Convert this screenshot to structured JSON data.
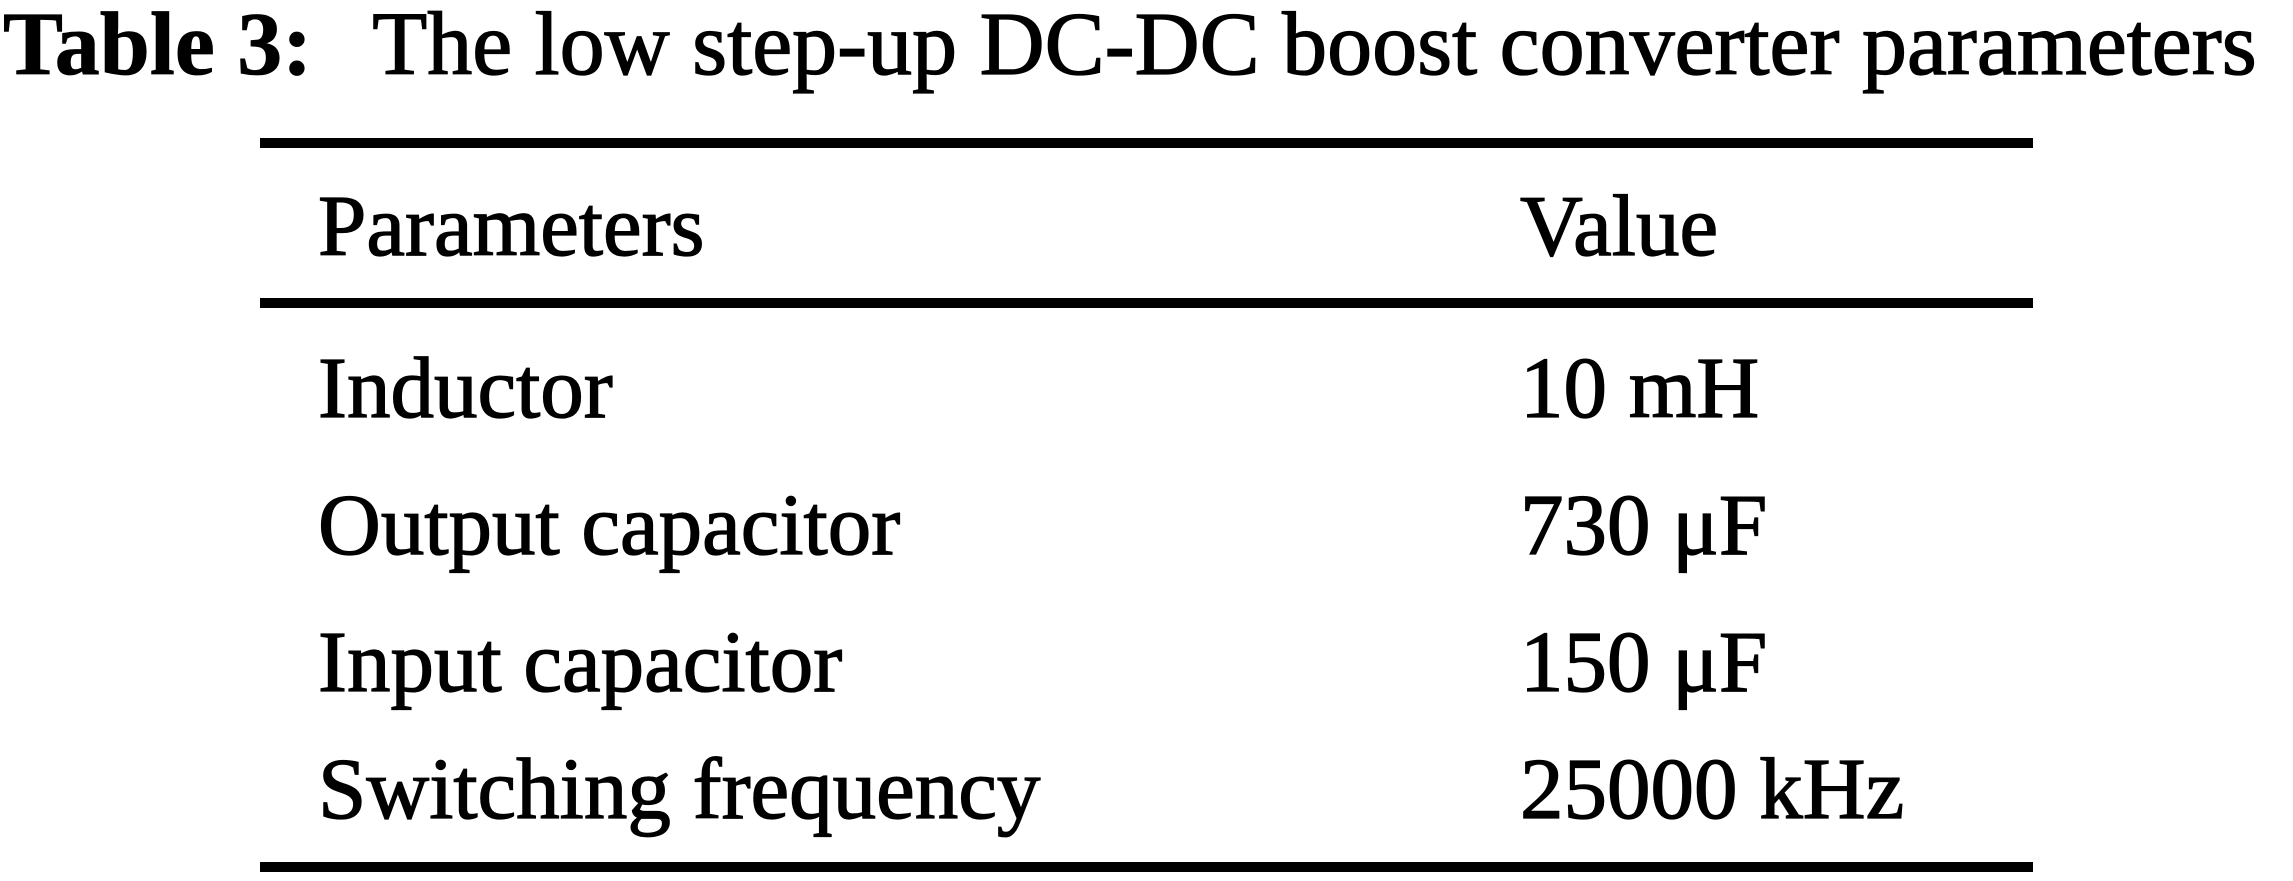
{
  "page": {
    "background_color": "#ffffff",
    "text_color": "#000000"
  },
  "caption": {
    "label": "Table 3:",
    "text": "The low step-up DC-DC boost converter parameters"
  },
  "table": {
    "columns": [
      "Parameters",
      "Value"
    ],
    "rows": [
      {
        "parameter": "Inductor",
        "value": "10 mH"
      },
      {
        "parameter": "Output capacitor",
        "value": "730 μF"
      },
      {
        "parameter": "Input capacitor",
        "value": "150 μF"
      },
      {
        "parameter": "Switching frequency",
        "value": "25000 kHz"
      }
    ]
  },
  "chart_data": {
    "type": "table",
    "title": "Table 3: The low step-up DC-DC boost converter parameters",
    "columns": [
      "Parameters",
      "Value"
    ],
    "rows": [
      [
        "Inductor",
        "10 mH"
      ],
      [
        "Output capacitor",
        "730 μF"
      ],
      [
        "Input capacitor",
        "150 μF"
      ],
      [
        "Switching frequency",
        "25000 kHz"
      ]
    ]
  }
}
